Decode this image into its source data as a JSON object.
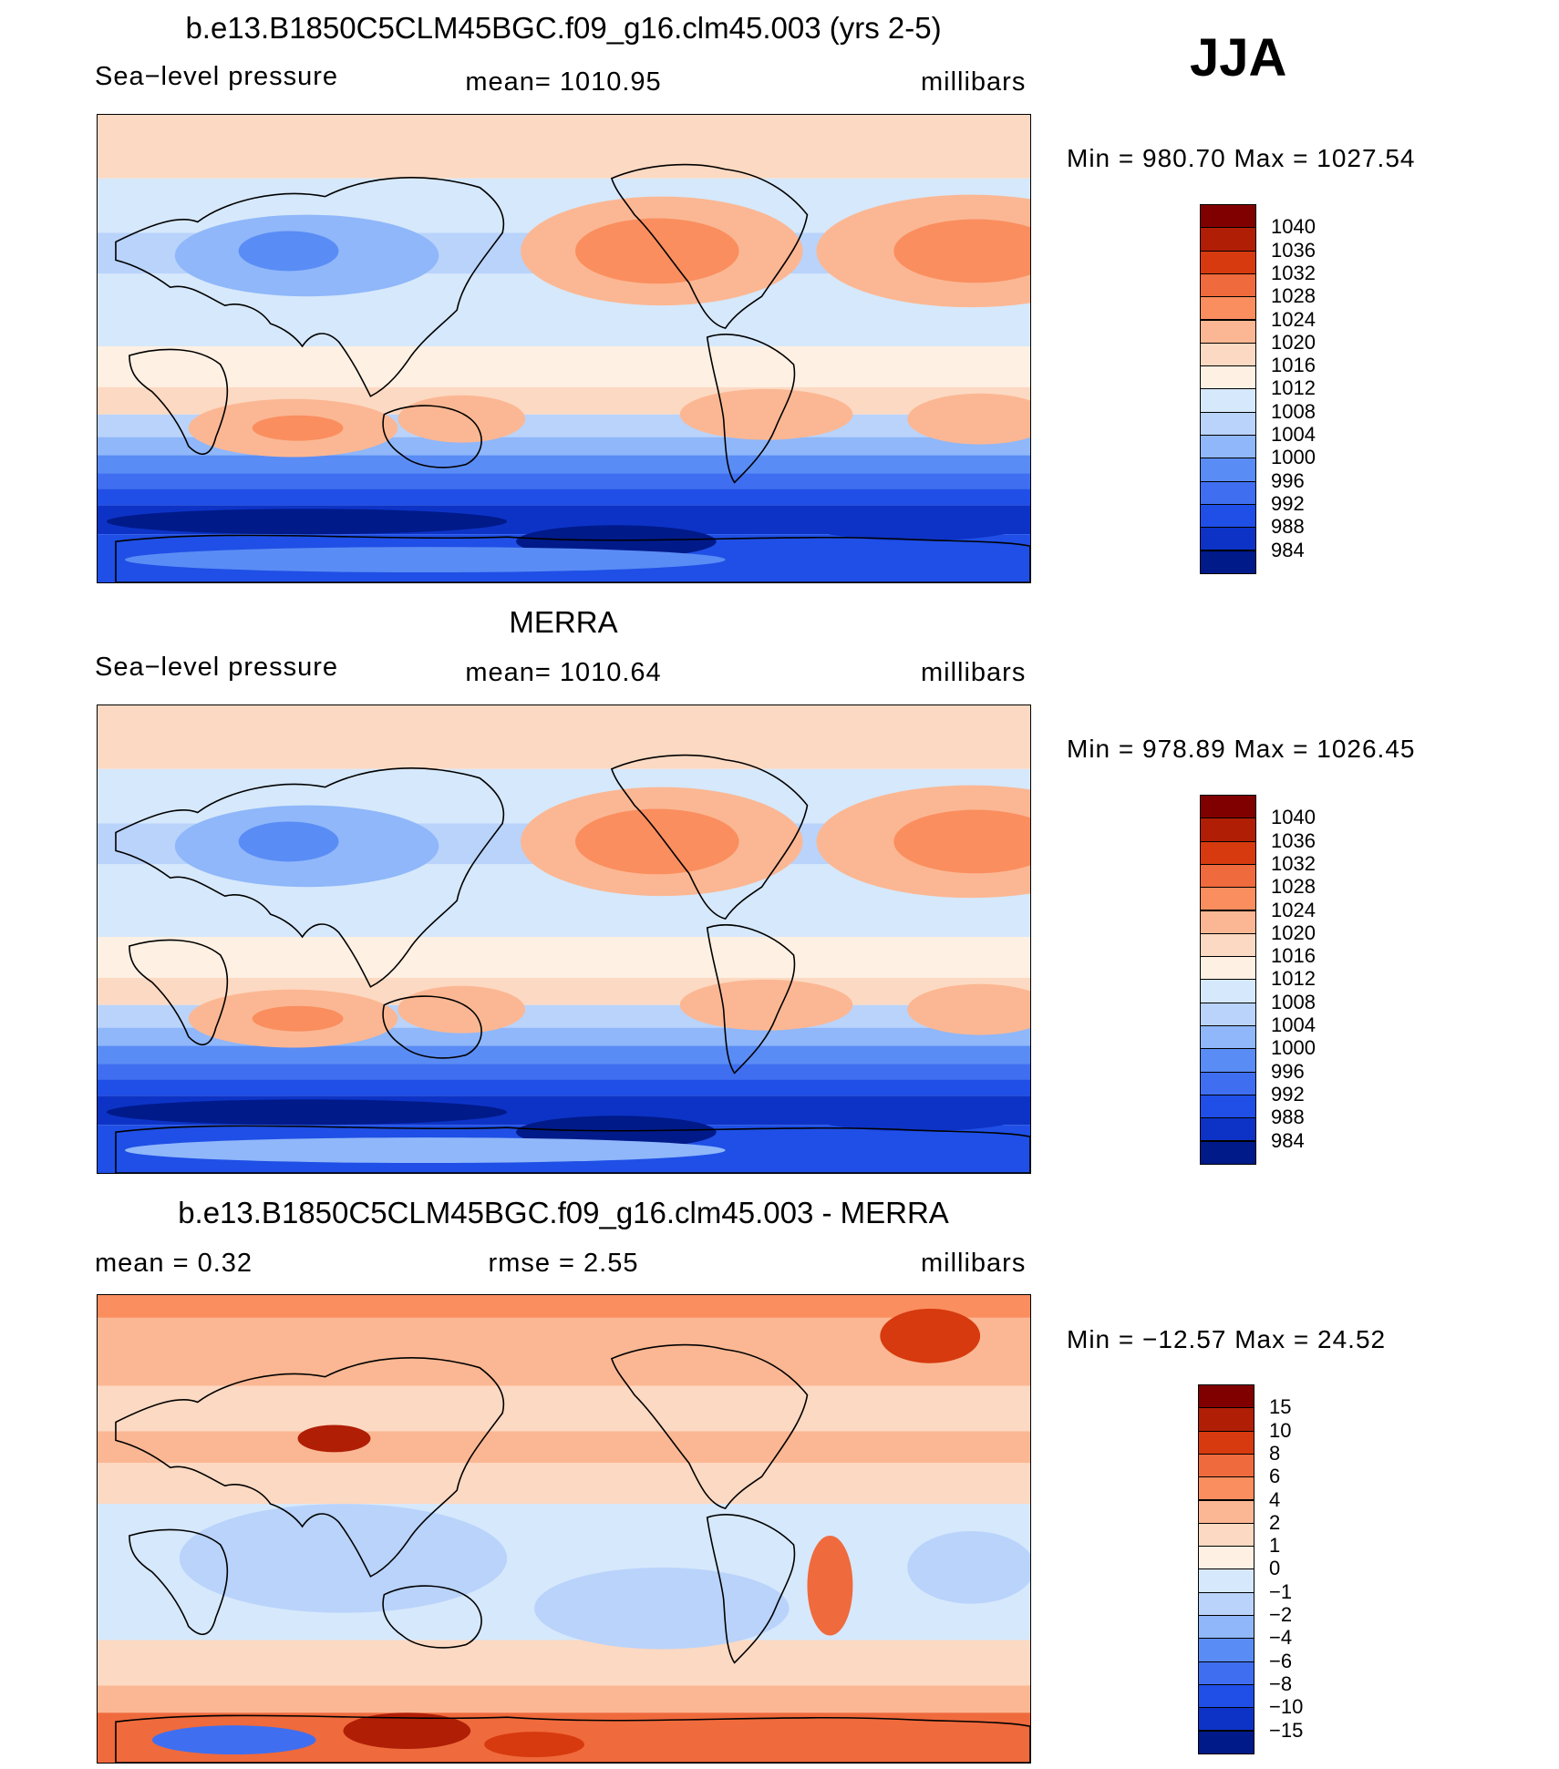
{
  "season": "JJA",
  "panels": [
    {
      "id": "model",
      "title": "b.e13.B1850C5CLM45BGC.f09_g16.clm45.003 (yrs 2-5)",
      "left_label": "Sea−level pressure",
      "center_label": "mean=  1010.95",
      "units": "millibars",
      "minmax": "Min  =  980.70  Max  =  1027.54",
      "map_type": "slp",
      "colorbar": {
        "colors": [
          "#800000",
          "#b01e06",
          "#d63a0e",
          "#ef6a3c",
          "#fa8e5f",
          "#fbb793",
          "#fcd9c2",
          "#fef0e3",
          "#d6e8fb",
          "#b9d3fb",
          "#8fb7fa",
          "#5a8cf5",
          "#3f6ff0",
          "#1f4fe6",
          "#0d33c6",
          "#001a8a"
        ],
        "labels": [
          "1040",
          "1036",
          "1032",
          "1028",
          "1024",
          "1020",
          "1016",
          "1012",
          "1008",
          "1004",
          "1000",
          "996",
          "992",
          "988",
          "984"
        ]
      }
    },
    {
      "id": "obs",
      "title": "MERRA",
      "left_label": "Sea−level pressure",
      "center_label": "mean=  1010.64",
      "units": "millibars",
      "minmax": "Min  =  978.89  Max  =  1026.45",
      "map_type": "slp",
      "colorbar": {
        "colors": [
          "#800000",
          "#b01e06",
          "#d63a0e",
          "#ef6a3c",
          "#fa8e5f",
          "#fbb793",
          "#fcd9c2",
          "#fef0e3",
          "#d6e8fb",
          "#b9d3fb",
          "#8fb7fa",
          "#5a8cf5",
          "#3f6ff0",
          "#1f4fe6",
          "#0d33c6",
          "#001a8a"
        ],
        "labels": [
          "1040",
          "1036",
          "1032",
          "1028",
          "1024",
          "1020",
          "1016",
          "1012",
          "1008",
          "1004",
          "1000",
          "996",
          "992",
          "988",
          "984"
        ]
      }
    },
    {
      "id": "diff",
      "title": "b.e13.B1850C5CLM45BGC.f09_g16.clm45.003 - MERRA",
      "left_label": "mean  =     0.32",
      "center_label": "rmse  =     2.55",
      "units": "millibars",
      "minmax": "Min  =  −12.57  Max  =    24.52",
      "map_type": "diff",
      "colorbar": {
        "colors": [
          "#800000",
          "#b01e06",
          "#d63a0e",
          "#ef6a3c",
          "#fa8e5f",
          "#fbb793",
          "#fcd9c2",
          "#fef0e3",
          "#d6e8fb",
          "#b9d3fb",
          "#8fb7fa",
          "#5a8cf5",
          "#3f6ff0",
          "#1f4fe6",
          "#0d33c6",
          "#001a8a"
        ],
        "labels": [
          "15",
          "10",
          "8",
          "6",
          "4",
          "2",
          "1",
          "0",
          "−1",
          "−2",
          "−4",
          "−6",
          "−8",
          "−10",
          "−15"
        ]
      }
    }
  ]
}
